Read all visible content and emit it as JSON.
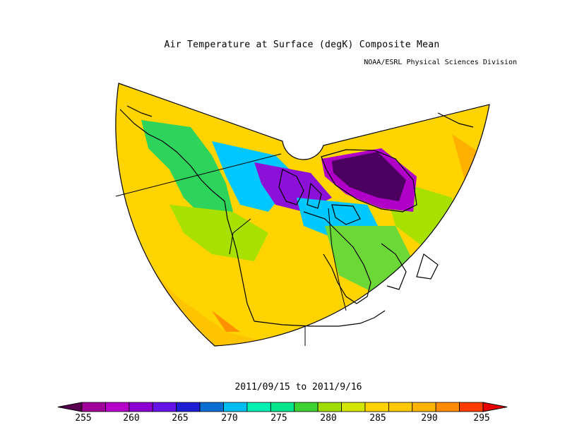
{
  "title": "Air Temperature at Surface (degK) Composite Mean",
  "subtitle": "NOAA/ESRL Physical Sciences Division",
  "date_range": "2011/09/15 to 2011/9/16",
  "colorbar": {
    "ticks": [
      "255",
      "260",
      "265",
      "270",
      "275",
      "280",
      "285",
      "290",
      "295"
    ],
    "colors": [
      "#5a0050",
      "#a0009a",
      "#b400c8",
      "#8c00d2",
      "#6414e6",
      "#1e1ed2",
      "#0a6ed2",
      "#00bef0",
      "#00f0b4",
      "#00e68c",
      "#3cd232",
      "#a0dc00",
      "#d2e600",
      "#ffd200",
      "#ffc800",
      "#ffb400",
      "#ff8c00",
      "#ff3c00",
      "#e60000"
    ]
  },
  "map_regions": {
    "background": "#ffd400",
    "ocean_margin": "#ffc400",
    "north_pacific_warm": "#ffb000",
    "greenland_cold": "#4b0060",
    "greenland_edge": "#b000c8",
    "arctic_cold": "#8c10d8",
    "canada_arctic": "#00c8ff",
    "yukon_green": "#2ed35c",
    "boreal_lime": "#a8e000",
    "hudson_green": "#6cd838",
    "southwest_orange": "#ff9000"
  }
}
